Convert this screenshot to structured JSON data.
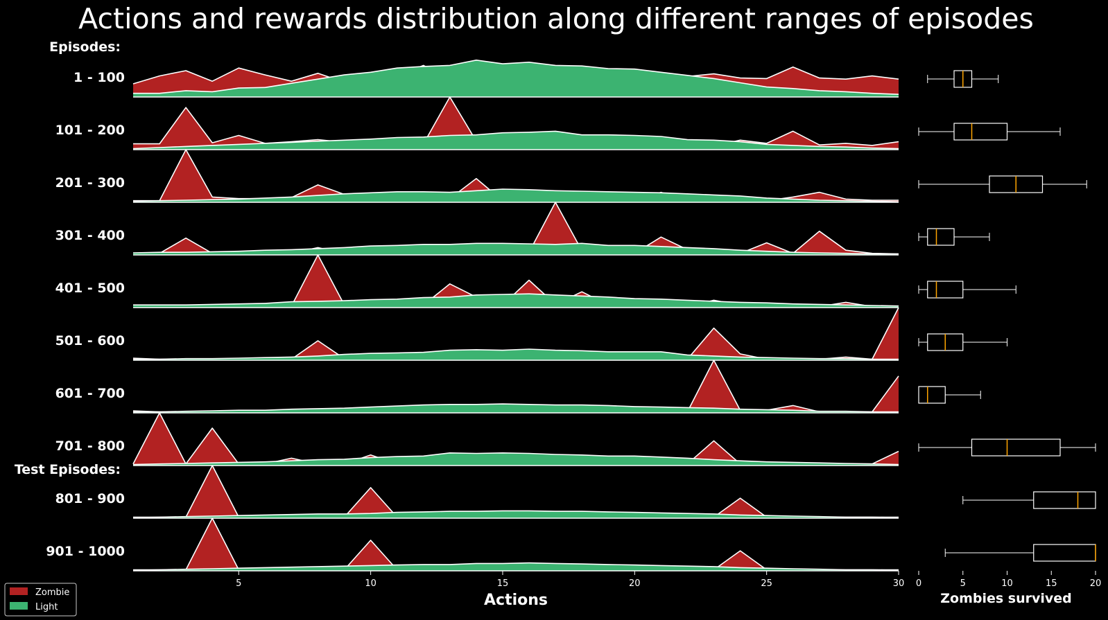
{
  "chart_data": [
    {
      "type": "area",
      "title": "Actions and rewards distribution along different ranges of episodes",
      "xlabel": "Actions",
      "xlim": [
        1,
        30
      ],
      "xticks": [
        5,
        10,
        15,
        20,
        25,
        30
      ],
      "section_labels": [
        "Episodes:",
        "Test Episodes:"
      ],
      "legend": {
        "placement": "bottom-left",
        "entries": [
          "Zombie",
          "Light"
        ]
      },
      "colors": {
        "Zombie": "#B22222",
        "Light": "#3CB371",
        "edge": "#FFFFFF",
        "background": "#000000"
      },
      "x": [
        1,
        2,
        3,
        4,
        5,
        6,
        7,
        8,
        9,
        10,
        11,
        12,
        13,
        14,
        15,
        16,
        17,
        18,
        19,
        20,
        21,
        22,
        23,
        24,
        25,
        26,
        27,
        28,
        29,
        30
      ],
      "rows": [
        {
          "label": "1 - 100",
          "zombie": [
            0.25,
            0.4,
            0.5,
            0.3,
            0.55,
            0.42,
            0.3,
            0.45,
            0.28,
            0.35,
            0.4,
            0.6,
            0.34,
            0.35,
            0.33,
            0.38,
            0.29,
            0.28,
            0.35,
            0.3,
            0.31,
            0.39,
            0.44,
            0.36,
            0.35,
            0.57,
            0.36,
            0.34,
            0.4,
            0.34
          ],
          "light": [
            0.07,
            0.07,
            0.12,
            0.1,
            0.17,
            0.18,
            0.26,
            0.34,
            0.42,
            0.47,
            0.55,
            0.58,
            0.6,
            0.7,
            0.63,
            0.66,
            0.6,
            0.59,
            0.54,
            0.53,
            0.47,
            0.41,
            0.35,
            0.27,
            0.19,
            0.16,
            0.12,
            0.1,
            0.07,
            0.05
          ]
        },
        {
          "label": "101 - 200",
          "zombie": [
            0.11,
            0.11,
            0.8,
            0.13,
            0.27,
            0.12,
            0.15,
            0.19,
            0.14,
            0.11,
            0.13,
            0.11,
            1.0,
            0.16,
            0.13,
            0.11,
            0.09,
            0.09,
            0.07,
            0.08,
            0.09,
            0.07,
            0.07,
            0.18,
            0.12,
            0.35,
            0.09,
            0.12,
            0.08,
            0.15
          ],
          "light": [
            0.02,
            0.04,
            0.06,
            0.08,
            0.1,
            0.12,
            0.14,
            0.16,
            0.18,
            0.2,
            0.23,
            0.24,
            0.27,
            0.28,
            0.32,
            0.33,
            0.35,
            0.28,
            0.28,
            0.27,
            0.25,
            0.19,
            0.18,
            0.15,
            0.1,
            0.08,
            0.06,
            0.05,
            0.03,
            0.02
          ]
        },
        {
          "label": "201 - 300",
          "zombie": [
            0.03,
            0.03,
            1.0,
            0.1,
            0.07,
            0.07,
            0.09,
            0.33,
            0.15,
            0.05,
            0.05,
            0.03,
            0.07,
            0.45,
            0.03,
            0.07,
            0.15,
            0.03,
            0.04,
            0.03,
            0.19,
            0.03,
            0.03,
            0.03,
            0.03,
            0.1,
            0.19,
            0.06,
            0.04,
            0.04
          ],
          "light": [
            0.02,
            0.03,
            0.04,
            0.05,
            0.06,
            0.08,
            0.1,
            0.13,
            0.16,
            0.18,
            0.2,
            0.2,
            0.19,
            0.22,
            0.25,
            0.24,
            0.22,
            0.21,
            0.2,
            0.19,
            0.18,
            0.16,
            0.14,
            0.12,
            0.08,
            0.06,
            0.04,
            0.03,
            0.02,
            0.01
          ]
        },
        {
          "label": "301 - 400",
          "zombie": [
            0.03,
            0.03,
            0.32,
            0.03,
            0.03,
            0.03,
            0.03,
            0.14,
            0.03,
            0.05,
            0.05,
            0.05,
            0.05,
            0.06,
            0.05,
            0.05,
            1.0,
            0.08,
            0.03,
            0.03,
            0.34,
            0.1,
            0.05,
            0.03,
            0.23,
            0.03,
            0.45,
            0.09,
            0.03,
            0.02
          ],
          "light": [
            0.04,
            0.05,
            0.05,
            0.06,
            0.07,
            0.09,
            0.1,
            0.12,
            0.14,
            0.17,
            0.18,
            0.2,
            0.2,
            0.22,
            0.22,
            0.21,
            0.2,
            0.22,
            0.18,
            0.18,
            0.16,
            0.14,
            0.12,
            0.09,
            0.07,
            0.05,
            0.04,
            0.03,
            0.02,
            0.02
          ]
        },
        {
          "label": "401 - 500",
          "zombie": [
            0.03,
            0.02,
            0.02,
            0.02,
            0.02,
            0.02,
            0.03,
            1.0,
            0.05,
            0.1,
            0.14,
            0.05,
            0.45,
            0.2,
            0.05,
            0.52,
            0.06,
            0.3,
            0.05,
            0.02,
            0.02,
            0.02,
            0.14,
            0.05,
            0.02,
            0.02,
            0.02,
            0.1,
            0.02,
            0.02
          ],
          "light": [
            0.05,
            0.05,
            0.05,
            0.06,
            0.07,
            0.08,
            0.11,
            0.12,
            0.13,
            0.15,
            0.16,
            0.19,
            0.2,
            0.24,
            0.25,
            0.26,
            0.24,
            0.22,
            0.2,
            0.17,
            0.16,
            0.14,
            0.12,
            0.1,
            0.09,
            0.07,
            0.06,
            0.05,
            0.04,
            0.03
          ]
        },
        {
          "label": "501 - 600",
          "zombie": [
            0.04,
            0.02,
            0.02,
            0.02,
            0.02,
            0.02,
            0.02,
            0.37,
            0.03,
            0.02,
            0.02,
            0.02,
            0.05,
            0.03,
            0.04,
            0.02,
            0.02,
            0.15,
            0.02,
            0.02,
            0.02,
            0.02,
            0.61,
            0.12,
            0.02,
            0.02,
            0.02,
            0.06,
            0.02,
            1.0
          ],
          "light": [
            0.02,
            0.02,
            0.03,
            0.03,
            0.04,
            0.05,
            0.06,
            0.08,
            0.11,
            0.13,
            0.14,
            0.15,
            0.19,
            0.2,
            0.19,
            0.21,
            0.19,
            0.18,
            0.16,
            0.16,
            0.16,
            0.1,
            0.08,
            0.06,
            0.05,
            0.04,
            0.03,
            0.03,
            0.02,
            0.02
          ]
        },
        {
          "label": "601 - 700",
          "zombie": [
            0.04,
            0.02,
            0.02,
            0.02,
            0.02,
            0.02,
            0.02,
            0.02,
            0.05,
            0.02,
            0.02,
            0.02,
            0.02,
            0.02,
            0.02,
            0.1,
            0.02,
            0.02,
            0.02,
            0.02,
            0.02,
            0.02,
            1.0,
            0.05,
            0.05,
            0.14,
            0.02,
            0.02,
            0.02,
            0.7
          ],
          "light": [
            0.02,
            0.02,
            0.03,
            0.04,
            0.05,
            0.05,
            0.07,
            0.08,
            0.09,
            0.11,
            0.13,
            0.15,
            0.16,
            0.16,
            0.17,
            0.16,
            0.15,
            0.15,
            0.14,
            0.12,
            0.11,
            0.1,
            0.09,
            0.07,
            0.06,
            0.05,
            0.03,
            0.03,
            0.02,
            0.02
          ]
        },
        {
          "label": "701 - 800",
          "zombie": [
            0.03,
            1.0,
            0.03,
            0.71,
            0.03,
            0.03,
            0.14,
            0.03,
            0.03,
            0.2,
            0.03,
            0.03,
            0.03,
            0.03,
            0.03,
            0.03,
            0.03,
            0.03,
            0.03,
            0.03,
            0.03,
            0.03,
            0.47,
            0.03,
            0.03,
            0.03,
            0.03,
            0.03,
            0.03,
            0.27
          ],
          "light": [
            0.02,
            0.03,
            0.04,
            0.05,
            0.06,
            0.07,
            0.09,
            0.11,
            0.12,
            0.15,
            0.17,
            0.18,
            0.24,
            0.23,
            0.24,
            0.23,
            0.21,
            0.2,
            0.18,
            0.18,
            0.16,
            0.14,
            0.11,
            0.09,
            0.07,
            0.06,
            0.05,
            0.04,
            0.03,
            0.02
          ]
        },
        {
          "label": "801 - 900",
          "zombie": [
            0.02,
            0.02,
            0.02,
            1.0,
            0.02,
            0.02,
            0.02,
            0.02,
            0.02,
            0.58,
            0.02,
            0.02,
            0.02,
            0.02,
            0.02,
            0.02,
            0.02,
            0.02,
            0.02,
            0.02,
            0.02,
            0.02,
            0.02,
            0.38,
            0.02,
            0.02,
            0.02,
            0.02,
            0.02,
            0.02
          ],
          "light": [
            0.01,
            0.02,
            0.03,
            0.04,
            0.05,
            0.06,
            0.07,
            0.08,
            0.08,
            0.09,
            0.11,
            0.12,
            0.13,
            0.13,
            0.14,
            0.14,
            0.13,
            0.13,
            0.12,
            0.11,
            0.1,
            0.09,
            0.08,
            0.06,
            0.05,
            0.04,
            0.03,
            0.02,
            0.02,
            0.01
          ]
        },
        {
          "label": "901 - 1000",
          "zombie": [
            0.02,
            0.02,
            0.02,
            1.0,
            0.02,
            0.02,
            0.02,
            0.02,
            0.02,
            0.58,
            0.02,
            0.02,
            0.02,
            0.02,
            0.02,
            0.02,
            0.02,
            0.02,
            0.02,
            0.02,
            0.02,
            0.02,
            0.02,
            0.38,
            0.02,
            0.02,
            0.02,
            0.02,
            0.02,
            0.02
          ],
          "light": [
            0.01,
            0.02,
            0.03,
            0.04,
            0.05,
            0.06,
            0.07,
            0.08,
            0.09,
            0.1,
            0.11,
            0.12,
            0.12,
            0.14,
            0.14,
            0.15,
            0.14,
            0.13,
            0.12,
            0.11,
            0.1,
            0.09,
            0.08,
            0.06,
            0.05,
            0.04,
            0.03,
            0.02,
            0.02,
            0.01
          ]
        }
      ]
    },
    {
      "type": "box",
      "xlabel": "Zombies survived",
      "xlim": [
        0,
        20
      ],
      "xticks": [
        0,
        5,
        10,
        15,
        20
      ],
      "boxes": [
        {
          "label": "1 - 100",
          "whisker_low": 1,
          "q1": 4,
          "median": 5,
          "q3": 6,
          "whisker_high": 9
        },
        {
          "label": "101 - 200",
          "whisker_low": 0,
          "q1": 4,
          "median": 6,
          "q3": 10,
          "whisker_high": 16
        },
        {
          "label": "201 - 300",
          "whisker_low": 0,
          "q1": 8,
          "median": 11,
          "q3": 14,
          "whisker_high": 19
        },
        {
          "label": "301 - 400",
          "whisker_low": 0,
          "q1": 1,
          "median": 2,
          "q3": 4,
          "whisker_high": 8
        },
        {
          "label": "401 - 500",
          "whisker_low": 0,
          "q1": 1,
          "median": 2,
          "q3": 5,
          "whisker_high": 11
        },
        {
          "label": "501 - 600",
          "whisker_low": 0,
          "q1": 1,
          "median": 3,
          "q3": 5,
          "whisker_high": 10
        },
        {
          "label": "601 - 700",
          "whisker_low": 0,
          "q1": 0,
          "median": 1,
          "q3": 3,
          "whisker_high": 7
        },
        {
          "label": "701 - 800",
          "whisker_low": 0,
          "q1": 6,
          "median": 10,
          "q3": 16,
          "whisker_high": 20
        },
        {
          "label": "801 - 900",
          "whisker_low": 5,
          "q1": 13,
          "median": 18,
          "q3": 20,
          "whisker_high": 20
        },
        {
          "label": "901 - 1000",
          "whisker_low": 3,
          "q1": 13,
          "median": 20,
          "q3": 20,
          "whisker_high": 20
        }
      ],
      "colors": {
        "box": "#FFFFFF",
        "median": "#FFA500"
      }
    }
  ]
}
